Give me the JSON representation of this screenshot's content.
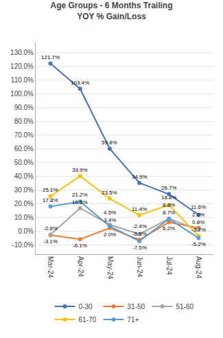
{
  "chart_data": {
    "type": "line",
    "title": "Age Groups - 6 Months Trailing\nYOY % Gain/Loss",
    "categories": [
      "Mar-24",
      "Apr-24",
      "May-24",
      "Jun-24",
      "Jul-24",
      "Aug-24"
    ],
    "series": [
      {
        "name": "0-30",
        "color": "#4472C4",
        "marker": "circle",
        "values": [
          121.7,
          103.4,
          59.8,
          34.9,
          26.7,
          11.6
        ],
        "value_labels": [
          "121.7%",
          "103.4%",
          "59.8%",
          "34.9%",
          "26.7%",
          "11.6%"
        ]
      },
      {
        "name": "31-50",
        "color": "#ED7D31",
        "marker": "circle",
        "values": [
          -3.1,
          -6.1,
          2.0,
          -6.5,
          6.2,
          2.1
        ],
        "value_labels": [
          "-3.1%",
          "-6.1%",
          "2.0%",
          "-6.5%",
          "6.2%",
          "2.1%"
        ]
      },
      {
        "name": "51-60",
        "color": "#A5A5A5",
        "marker": "circle",
        "values": [
          -2.8,
          16.5,
          4.5,
          -2.4,
          8.8,
          0.8
        ],
        "value_labels": [
          "-2.8%",
          "16.5%",
          "4.5%",
          "-2.4%",
          "8.8%",
          "0.8%"
        ]
      },
      {
        "name": "61-70",
        "color": "#FFC000",
        "marker": "circle",
        "values": [
          25.1,
          39.9,
          23.5,
          11.4,
          18.8,
          -3.7
        ],
        "value_labels": [
          "25.1%",
          "39.9%",
          "23.5%",
          "11.4%",
          "18.8%",
          "-3.7%"
        ]
      },
      {
        "name": "71+",
        "color": "#5B9BD5",
        "marker": "circle",
        "values": [
          17.8,
          21.2,
          3.4,
          -7.5,
          8.7,
          -5.2
        ],
        "value_labels": [
          "17.8%",
          "21.2%",
          "3.4%",
          "-7.5%",
          "8.7%",
          "-5.2%"
        ]
      }
    ],
    "ylim": [
      -17,
      137
    ],
    "yticks": [
      {
        "value": -10,
        "label": "-10.0%"
      },
      {
        "value": 0,
        "label": "0.0%"
      },
      {
        "value": 10,
        "label": "10.0%"
      },
      {
        "value": 20,
        "label": "20.0%"
      },
      {
        "value": 30,
        "label": "30.0%"
      },
      {
        "value": 40,
        "label": "40.0%"
      },
      {
        "value": 50,
        "label": "50.0%"
      },
      {
        "value": 60,
        "label": "60.0%"
      },
      {
        "value": 70,
        "label": "70.0%"
      },
      {
        "value": 80,
        "label": "80.0%"
      },
      {
        "value": 90,
        "label": "90.0%"
      },
      {
        "value": 100,
        "label": "100.0%"
      },
      {
        "value": 110,
        "label": "110.0%"
      },
      {
        "value": 120,
        "label": "120.0%"
      },
      {
        "value": 130,
        "label": "130.0%"
      }
    ],
    "grid": true,
    "legend": "bottom",
    "data_labels": true
  }
}
